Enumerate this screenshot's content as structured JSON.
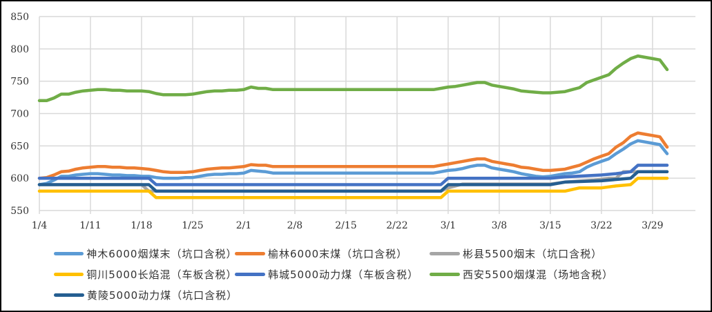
{
  "chart_data": {
    "type": "line",
    "title": "",
    "xlabel": "",
    "ylabel": "",
    "ylim": [
      550,
      850
    ],
    "yticks": [
      550,
      600,
      650,
      700,
      750,
      800,
      850
    ],
    "xtick_labels": [
      "1/4",
      "1/11",
      "1/18",
      "1/25",
      "2/1",
      "2/8",
      "2/15",
      "2/22",
      "3/1",
      "3/8",
      "3/15",
      "3/22",
      "3/29"
    ],
    "xtick_days": [
      0,
      7,
      14,
      21,
      28,
      35,
      42,
      49,
      56,
      63,
      70,
      77,
      84
    ],
    "x_unit": "days since 1/4",
    "grid": true,
    "legend_position": "bottom",
    "series": [
      {
        "name": "神木6000烟煤末（坑口含税）",
        "color": "#5B9BD5",
        "points": [
          [
            0,
            590
          ],
          [
            1,
            592
          ],
          [
            2,
            597
          ],
          [
            3,
            603
          ],
          [
            4,
            603
          ],
          [
            5,
            605
          ],
          [
            6,
            606
          ],
          [
            7,
            607
          ],
          [
            8,
            607
          ],
          [
            9,
            606
          ],
          [
            10,
            605
          ],
          [
            11,
            605
          ],
          [
            12,
            604
          ],
          [
            13,
            604
          ],
          [
            14,
            603
          ],
          [
            15,
            603
          ],
          [
            16,
            601
          ],
          [
            17,
            600
          ],
          [
            18,
            600
          ],
          [
            19,
            600
          ],
          [
            20,
            601
          ],
          [
            21,
            601
          ],
          [
            22,
            603
          ],
          [
            23,
            605
          ],
          [
            24,
            606
          ],
          [
            25,
            606
          ],
          [
            26,
            607
          ],
          [
            27,
            607
          ],
          [
            28,
            608
          ],
          [
            29,
            612
          ],
          [
            30,
            611
          ],
          [
            31,
            610
          ],
          [
            32,
            608
          ],
          [
            33,
            608
          ],
          [
            40,
            608
          ],
          [
            50,
            608
          ],
          [
            54,
            608
          ],
          [
            55,
            610
          ],
          [
            56,
            612
          ],
          [
            57,
            613
          ],
          [
            58,
            615
          ],
          [
            59,
            618
          ],
          [
            60,
            620
          ],
          [
            61,
            620
          ],
          [
            62,
            616
          ],
          [
            63,
            614
          ],
          [
            64,
            612
          ],
          [
            65,
            610
          ],
          [
            66,
            607
          ],
          [
            67,
            605
          ],
          [
            68,
            603
          ],
          [
            69,
            602
          ],
          [
            70,
            603
          ],
          [
            71,
            605
          ],
          [
            72,
            607
          ],
          [
            73,
            608
          ],
          [
            74,
            610
          ],
          [
            75,
            617
          ],
          [
            76,
            622
          ],
          [
            77,
            626
          ],
          [
            78,
            630
          ],
          [
            79,
            638
          ],
          [
            80,
            645
          ],
          [
            81,
            653
          ],
          [
            82,
            658
          ],
          [
            83,
            656
          ],
          [
            84,
            654
          ],
          [
            85,
            652
          ],
          [
            86,
            638
          ]
        ]
      },
      {
        "name": "榆林6000末煤（坑口含税）",
        "color": "#ED7D31",
        "points": [
          [
            0,
            600
          ],
          [
            1,
            601
          ],
          [
            2,
            605
          ],
          [
            3,
            610
          ],
          [
            4,
            611
          ],
          [
            5,
            614
          ],
          [
            6,
            616
          ],
          [
            7,
            617
          ],
          [
            8,
            618
          ],
          [
            9,
            618
          ],
          [
            10,
            617
          ],
          [
            11,
            617
          ],
          [
            12,
            616
          ],
          [
            13,
            616
          ],
          [
            14,
            615
          ],
          [
            15,
            614
          ],
          [
            16,
            612
          ],
          [
            17,
            610
          ],
          [
            18,
            609
          ],
          [
            19,
            609
          ],
          [
            20,
            609
          ],
          [
            21,
            610
          ],
          [
            22,
            612
          ],
          [
            23,
            614
          ],
          [
            24,
            615
          ],
          [
            25,
            616
          ],
          [
            26,
            616
          ],
          [
            27,
            617
          ],
          [
            28,
            618
          ],
          [
            29,
            621
          ],
          [
            30,
            620
          ],
          [
            31,
            620
          ],
          [
            32,
            618
          ],
          [
            33,
            618
          ],
          [
            40,
            618
          ],
          [
            50,
            618
          ],
          [
            54,
            618
          ],
          [
            55,
            620
          ],
          [
            56,
            622
          ],
          [
            57,
            624
          ],
          [
            58,
            626
          ],
          [
            59,
            628
          ],
          [
            60,
            630
          ],
          [
            61,
            630
          ],
          [
            62,
            626
          ],
          [
            63,
            624
          ],
          [
            64,
            622
          ],
          [
            65,
            620
          ],
          [
            66,
            617
          ],
          [
            67,
            616
          ],
          [
            68,
            614
          ],
          [
            69,
            612
          ],
          [
            70,
            612
          ],
          [
            71,
            613
          ],
          [
            72,
            614
          ],
          [
            73,
            617
          ],
          [
            74,
            620
          ],
          [
            75,
            625
          ],
          [
            76,
            630
          ],
          [
            77,
            634
          ],
          [
            78,
            638
          ],
          [
            79,
            648
          ],
          [
            80,
            655
          ],
          [
            81,
            665
          ],
          [
            82,
            670
          ],
          [
            83,
            668
          ],
          [
            84,
            666
          ],
          [
            85,
            664
          ],
          [
            86,
            648
          ]
        ]
      },
      {
        "name": "彬县5500烟末（坑口含税）",
        "color": "#A5A5A5",
        "points": [
          [
            0,
            590
          ],
          [
            14,
            590
          ],
          [
            15,
            580
          ],
          [
            55,
            580
          ],
          [
            56,
            585
          ],
          [
            57,
            588
          ],
          [
            58,
            591
          ],
          [
            70,
            591
          ],
          [
            72,
            594
          ],
          [
            76,
            597
          ],
          [
            78,
            600
          ],
          [
            79,
            600
          ],
          [
            80,
            610
          ],
          [
            86,
            610
          ]
        ]
      },
      {
        "name": "铜川5000长焰混（车板含税）",
        "color": "#FFC000",
        "points": [
          [
            0,
            580
          ],
          [
            15,
            580
          ],
          [
            16,
            570
          ],
          [
            55,
            570
          ],
          [
            56,
            580
          ],
          [
            72,
            580
          ],
          [
            74,
            585
          ],
          [
            77,
            585
          ],
          [
            79,
            588
          ],
          [
            81,
            590
          ],
          [
            82,
            600
          ],
          [
            86,
            600
          ]
        ]
      },
      {
        "name": "韩城5000动力煤（车板含税）",
        "color": "#4472C4",
        "points": [
          [
            0,
            600
          ],
          [
            15,
            600
          ],
          [
            16,
            590
          ],
          [
            55,
            590
          ],
          [
            56,
            600
          ],
          [
            70,
            600
          ],
          [
            72,
            602
          ],
          [
            77,
            605
          ],
          [
            79,
            607
          ],
          [
            81,
            610
          ],
          [
            82,
            620
          ],
          [
            86,
            620
          ]
        ]
      },
      {
        "name": "西安5500烟煤混（场地含税）",
        "color": "#70AD47",
        "points": [
          [
            0,
            720
          ],
          [
            1,
            720
          ],
          [
            2,
            724
          ],
          [
            3,
            730
          ],
          [
            4,
            730
          ],
          [
            5,
            733
          ],
          [
            6,
            735
          ],
          [
            7,
            736
          ],
          [
            8,
            737
          ],
          [
            9,
            737
          ],
          [
            10,
            736
          ],
          [
            11,
            736
          ],
          [
            12,
            735
          ],
          [
            13,
            735
          ],
          [
            14,
            735
          ],
          [
            15,
            734
          ],
          [
            16,
            731
          ],
          [
            17,
            729
          ],
          [
            18,
            729
          ],
          [
            19,
            729
          ],
          [
            20,
            729
          ],
          [
            21,
            730
          ],
          [
            22,
            732
          ],
          [
            23,
            734
          ],
          [
            24,
            735
          ],
          [
            25,
            735
          ],
          [
            26,
            736
          ],
          [
            27,
            736
          ],
          [
            28,
            737
          ],
          [
            29,
            741
          ],
          [
            30,
            739
          ],
          [
            31,
            739
          ],
          [
            32,
            737
          ],
          [
            33,
            737
          ],
          [
            40,
            737
          ],
          [
            50,
            737
          ],
          [
            54,
            737
          ],
          [
            55,
            739
          ],
          [
            56,
            741
          ],
          [
            57,
            742
          ],
          [
            58,
            744
          ],
          [
            59,
            746
          ],
          [
            60,
            748
          ],
          [
            61,
            748
          ],
          [
            62,
            744
          ],
          [
            63,
            742
          ],
          [
            64,
            740
          ],
          [
            65,
            738
          ],
          [
            66,
            735
          ],
          [
            67,
            734
          ],
          [
            68,
            733
          ],
          [
            69,
            732
          ],
          [
            70,
            732
          ],
          [
            71,
            733
          ],
          [
            72,
            734
          ],
          [
            73,
            737
          ],
          [
            74,
            740
          ],
          [
            75,
            748
          ],
          [
            76,
            752
          ],
          [
            77,
            756
          ],
          [
            78,
            760
          ],
          [
            79,
            770
          ],
          [
            80,
            778
          ],
          [
            81,
            785
          ],
          [
            82,
            789
          ],
          [
            83,
            787
          ],
          [
            84,
            785
          ],
          [
            85,
            783
          ],
          [
            86,
            768
          ]
        ]
      },
      {
        "name": "黄陵5000动力煤（坑口含税）",
        "color": "#255E91",
        "points": [
          [
            0,
            590
          ],
          [
            15,
            590
          ],
          [
            16,
            580
          ],
          [
            55,
            580
          ],
          [
            56,
            590
          ],
          [
            70,
            590
          ],
          [
            72,
            594
          ],
          [
            77,
            596
          ],
          [
            79,
            598
          ],
          [
            81,
            600
          ],
          [
            82,
            610
          ],
          [
            86,
            610
          ]
        ]
      }
    ]
  },
  "legend": {
    "items": [
      {
        "label": "神木6000烟煤末（坑口含税）",
        "color": "#5B9BD5"
      },
      {
        "label": "榆林6000末煤（坑口含税）",
        "color": "#ED7D31"
      },
      {
        "label": "彬县5500烟末（坑口含税）",
        "color": "#A5A5A5"
      },
      {
        "label": "铜川5000长焰混（车板含税）",
        "color": "#FFC000"
      },
      {
        "label": "韩城5000动力煤（车板含税）",
        "color": "#4472C4"
      },
      {
        "label": "西安5500烟煤混（场地含税）",
        "color": "#70AD47"
      },
      {
        "label": "黄陵5000动力煤（坑口含税）",
        "color": "#255E91"
      }
    ]
  }
}
